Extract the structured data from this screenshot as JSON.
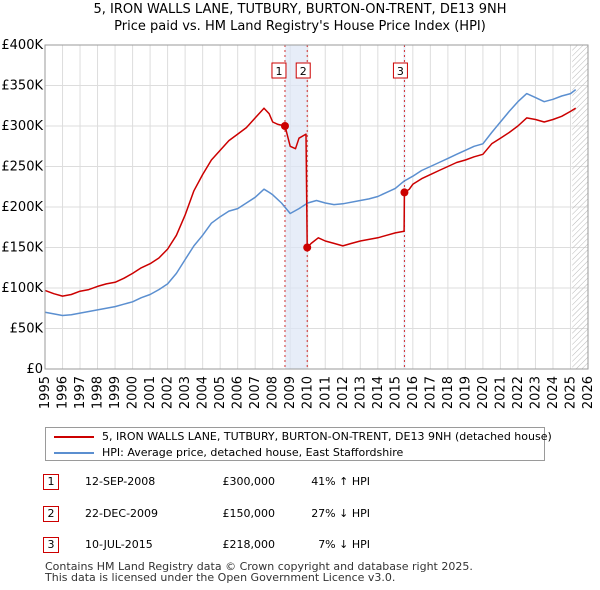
{
  "chart_data": {
    "type": "line",
    "title": "5, IRON WALLS LANE, TUTBURY, BURTON-ON-TRENT, DE13 9NH",
    "subtitle": "Price paid vs. HM Land Registry's House Price Index (HPI)",
    "xlim": [
      1995,
      2026
    ],
    "ylim": [
      0,
      400000
    ],
    "x_ticks": [
      1995,
      1996,
      1997,
      1998,
      1999,
      2000,
      2001,
      2002,
      2003,
      2004,
      2005,
      2006,
      2007,
      2008,
      2009,
      2010,
      2011,
      2012,
      2013,
      2014,
      2015,
      2016,
      2017,
      2018,
      2019,
      2020,
      2021,
      2022,
      2023,
      2024,
      2025,
      2026
    ],
    "y_ticks": [
      {
        "value": 0,
        "label": "£0"
      },
      {
        "value": 50000,
        "label": "£50K"
      },
      {
        "value": 100000,
        "label": "£100K"
      },
      {
        "value": 150000,
        "label": "£150K"
      },
      {
        "value": 200000,
        "label": "£200K"
      },
      {
        "value": 250000,
        "label": "£250K"
      },
      {
        "value": 300000,
        "label": "£300K"
      },
      {
        "value": 350000,
        "label": "£350K"
      },
      {
        "value": 400000,
        "label": "£400K"
      }
    ],
    "grid": true,
    "future_hatch_from": 2025.1,
    "series": [
      {
        "name": "5, IRON WALLS LANE, TUTBURY, BURTON-ON-TRENT, DE13 9NH (detached house)",
        "color": "#cc0000",
        "points": [
          [
            1995.0,
            97000
          ],
          [
            1995.5,
            93000
          ],
          [
            1996.0,
            90000
          ],
          [
            1996.5,
            92000
          ],
          [
            1997.0,
            96000
          ],
          [
            1997.5,
            98000
          ],
          [
            1998.0,
            102000
          ],
          [
            1998.5,
            105000
          ],
          [
            1999.0,
            107000
          ],
          [
            1999.5,
            112000
          ],
          [
            2000.0,
            118000
          ],
          [
            2000.5,
            125000
          ],
          [
            2001.0,
            130000
          ],
          [
            2001.5,
            137000
          ],
          [
            2002.0,
            148000
          ],
          [
            2002.5,
            165000
          ],
          [
            2003.0,
            190000
          ],
          [
            2003.5,
            220000
          ],
          [
            2004.0,
            240000
          ],
          [
            2004.5,
            258000
          ],
          [
            2005.0,
            270000
          ],
          [
            2005.5,
            282000
          ],
          [
            2006.0,
            290000
          ],
          [
            2006.5,
            298000
          ],
          [
            2007.0,
            310000
          ],
          [
            2007.5,
            322000
          ],
          [
            2007.8,
            315000
          ],
          [
            2008.0,
            305000
          ],
          [
            2008.3,
            302000
          ],
          [
            2008.7,
            300000
          ],
          [
            2009.0,
            275000
          ],
          [
            2009.3,
            272000
          ],
          [
            2009.5,
            285000
          ],
          [
            2009.9,
            290000
          ],
          [
            2009.97,
            150000
          ],
          [
            2010.2,
            155000
          ],
          [
            2010.6,
            162000
          ],
          [
            2011.0,
            158000
          ],
          [
            2011.5,
            155000
          ],
          [
            2012.0,
            152000
          ],
          [
            2012.5,
            155000
          ],
          [
            2013.0,
            158000
          ],
          [
            2013.5,
            160000
          ],
          [
            2014.0,
            162000
          ],
          [
            2014.5,
            165000
          ],
          [
            2015.0,
            168000
          ],
          [
            2015.5,
            170000
          ],
          [
            2015.52,
            218000
          ],
          [
            2015.8,
            222000
          ],
          [
            2016.0,
            228000
          ],
          [
            2016.5,
            235000
          ],
          [
            2017.0,
            240000
          ],
          [
            2017.5,
            245000
          ],
          [
            2018.0,
            250000
          ],
          [
            2018.5,
            255000
          ],
          [
            2019.0,
            258000
          ],
          [
            2019.5,
            262000
          ],
          [
            2020.0,
            265000
          ],
          [
            2020.5,
            278000
          ],
          [
            2021.0,
            285000
          ],
          [
            2021.5,
            292000
          ],
          [
            2022.0,
            300000
          ],
          [
            2022.5,
            310000
          ],
          [
            2023.0,
            308000
          ],
          [
            2023.5,
            305000
          ],
          [
            2024.0,
            308000
          ],
          [
            2024.5,
            312000
          ],
          [
            2025.0,
            318000
          ],
          [
            2025.3,
            322000
          ]
        ]
      },
      {
        "name": "HPI: Average price, detached house, East Staffordshire",
        "color": "#5b8fd0",
        "points": [
          [
            1995.0,
            70000
          ],
          [
            1995.5,
            68000
          ],
          [
            1996.0,
            66000
          ],
          [
            1996.5,
            67000
          ],
          [
            1997.0,
            69000
          ],
          [
            1997.5,
            71000
          ],
          [
            1998.0,
            73000
          ],
          [
            1998.5,
            75000
          ],
          [
            1999.0,
            77000
          ],
          [
            1999.5,
            80000
          ],
          [
            2000.0,
            83000
          ],
          [
            2000.5,
            88000
          ],
          [
            2001.0,
            92000
          ],
          [
            2001.5,
            98000
          ],
          [
            2002.0,
            105000
          ],
          [
            2002.5,
            118000
          ],
          [
            2003.0,
            135000
          ],
          [
            2003.5,
            152000
          ],
          [
            2004.0,
            165000
          ],
          [
            2004.5,
            180000
          ],
          [
            2005.0,
            188000
          ],
          [
            2005.5,
            195000
          ],
          [
            2006.0,
            198000
          ],
          [
            2006.5,
            205000
          ],
          [
            2007.0,
            212000
          ],
          [
            2007.5,
            222000
          ],
          [
            2007.8,
            218000
          ],
          [
            2008.0,
            215000
          ],
          [
            2008.5,
            205000
          ],
          [
            2009.0,
            192000
          ],
          [
            2009.5,
            198000
          ],
          [
            2010.0,
            205000
          ],
          [
            2010.5,
            208000
          ],
          [
            2011.0,
            205000
          ],
          [
            2011.5,
            203000
          ],
          [
            2012.0,
            204000
          ],
          [
            2013.0,
            208000
          ],
          [
            2013.5,
            210000
          ],
          [
            2014.0,
            213000
          ],
          [
            2014.5,
            218000
          ],
          [
            2015.0,
            223000
          ],
          [
            2015.5,
            232000
          ],
          [
            2016.0,
            238000
          ],
          [
            2016.5,
            245000
          ],
          [
            2017.0,
            250000
          ],
          [
            2017.5,
            255000
          ],
          [
            2018.0,
            260000
          ],
          [
            2018.5,
            265000
          ],
          [
            2019.0,
            270000
          ],
          [
            2019.5,
            275000
          ],
          [
            2020.0,
            278000
          ],
          [
            2020.5,
            292000
          ],
          [
            2021.0,
            305000
          ],
          [
            2021.5,
            318000
          ],
          [
            2022.0,
            330000
          ],
          [
            2022.5,
            340000
          ],
          [
            2023.0,
            335000
          ],
          [
            2023.5,
            330000
          ],
          [
            2024.0,
            333000
          ],
          [
            2024.5,
            337000
          ],
          [
            2025.0,
            340000
          ],
          [
            2025.3,
            345000
          ]
        ]
      }
    ],
    "sales": [
      {
        "label": "1",
        "x": 2008.7,
        "price": 300000,
        "date": "12-SEP-2008",
        "price_label": "£300,000",
        "hpi_change": "41% ↑ HPI"
      },
      {
        "label": "2",
        "x": 2009.97,
        "price": 150000,
        "date": "22-DEC-2009",
        "price_label": "£150,000",
        "hpi_change": "27% ↓ HPI"
      },
      {
        "label": "3",
        "x": 2015.52,
        "price": 218000,
        "date": "10-JUL-2015",
        "price_label": "£218,000",
        "hpi_change": "7% ↓ HPI"
      }
    ]
  },
  "legend": {
    "property_label": "5, IRON WALLS LANE, TUTBURY, BURTON-ON-TRENT, DE13 9NH (detached house)",
    "hpi_label": "HPI: Average price, detached house, East Staffordshire"
  },
  "footer": {
    "line1": "Contains HM Land Registry data © Crown copyright and database right 2025.",
    "line2": "This data is licensed under the Open Government Licence v3.0."
  },
  "colors": {
    "property": "#cc0000",
    "hpi": "#5b8fd0",
    "grid": "#dddddd",
    "shade": "#dde6f5"
  }
}
